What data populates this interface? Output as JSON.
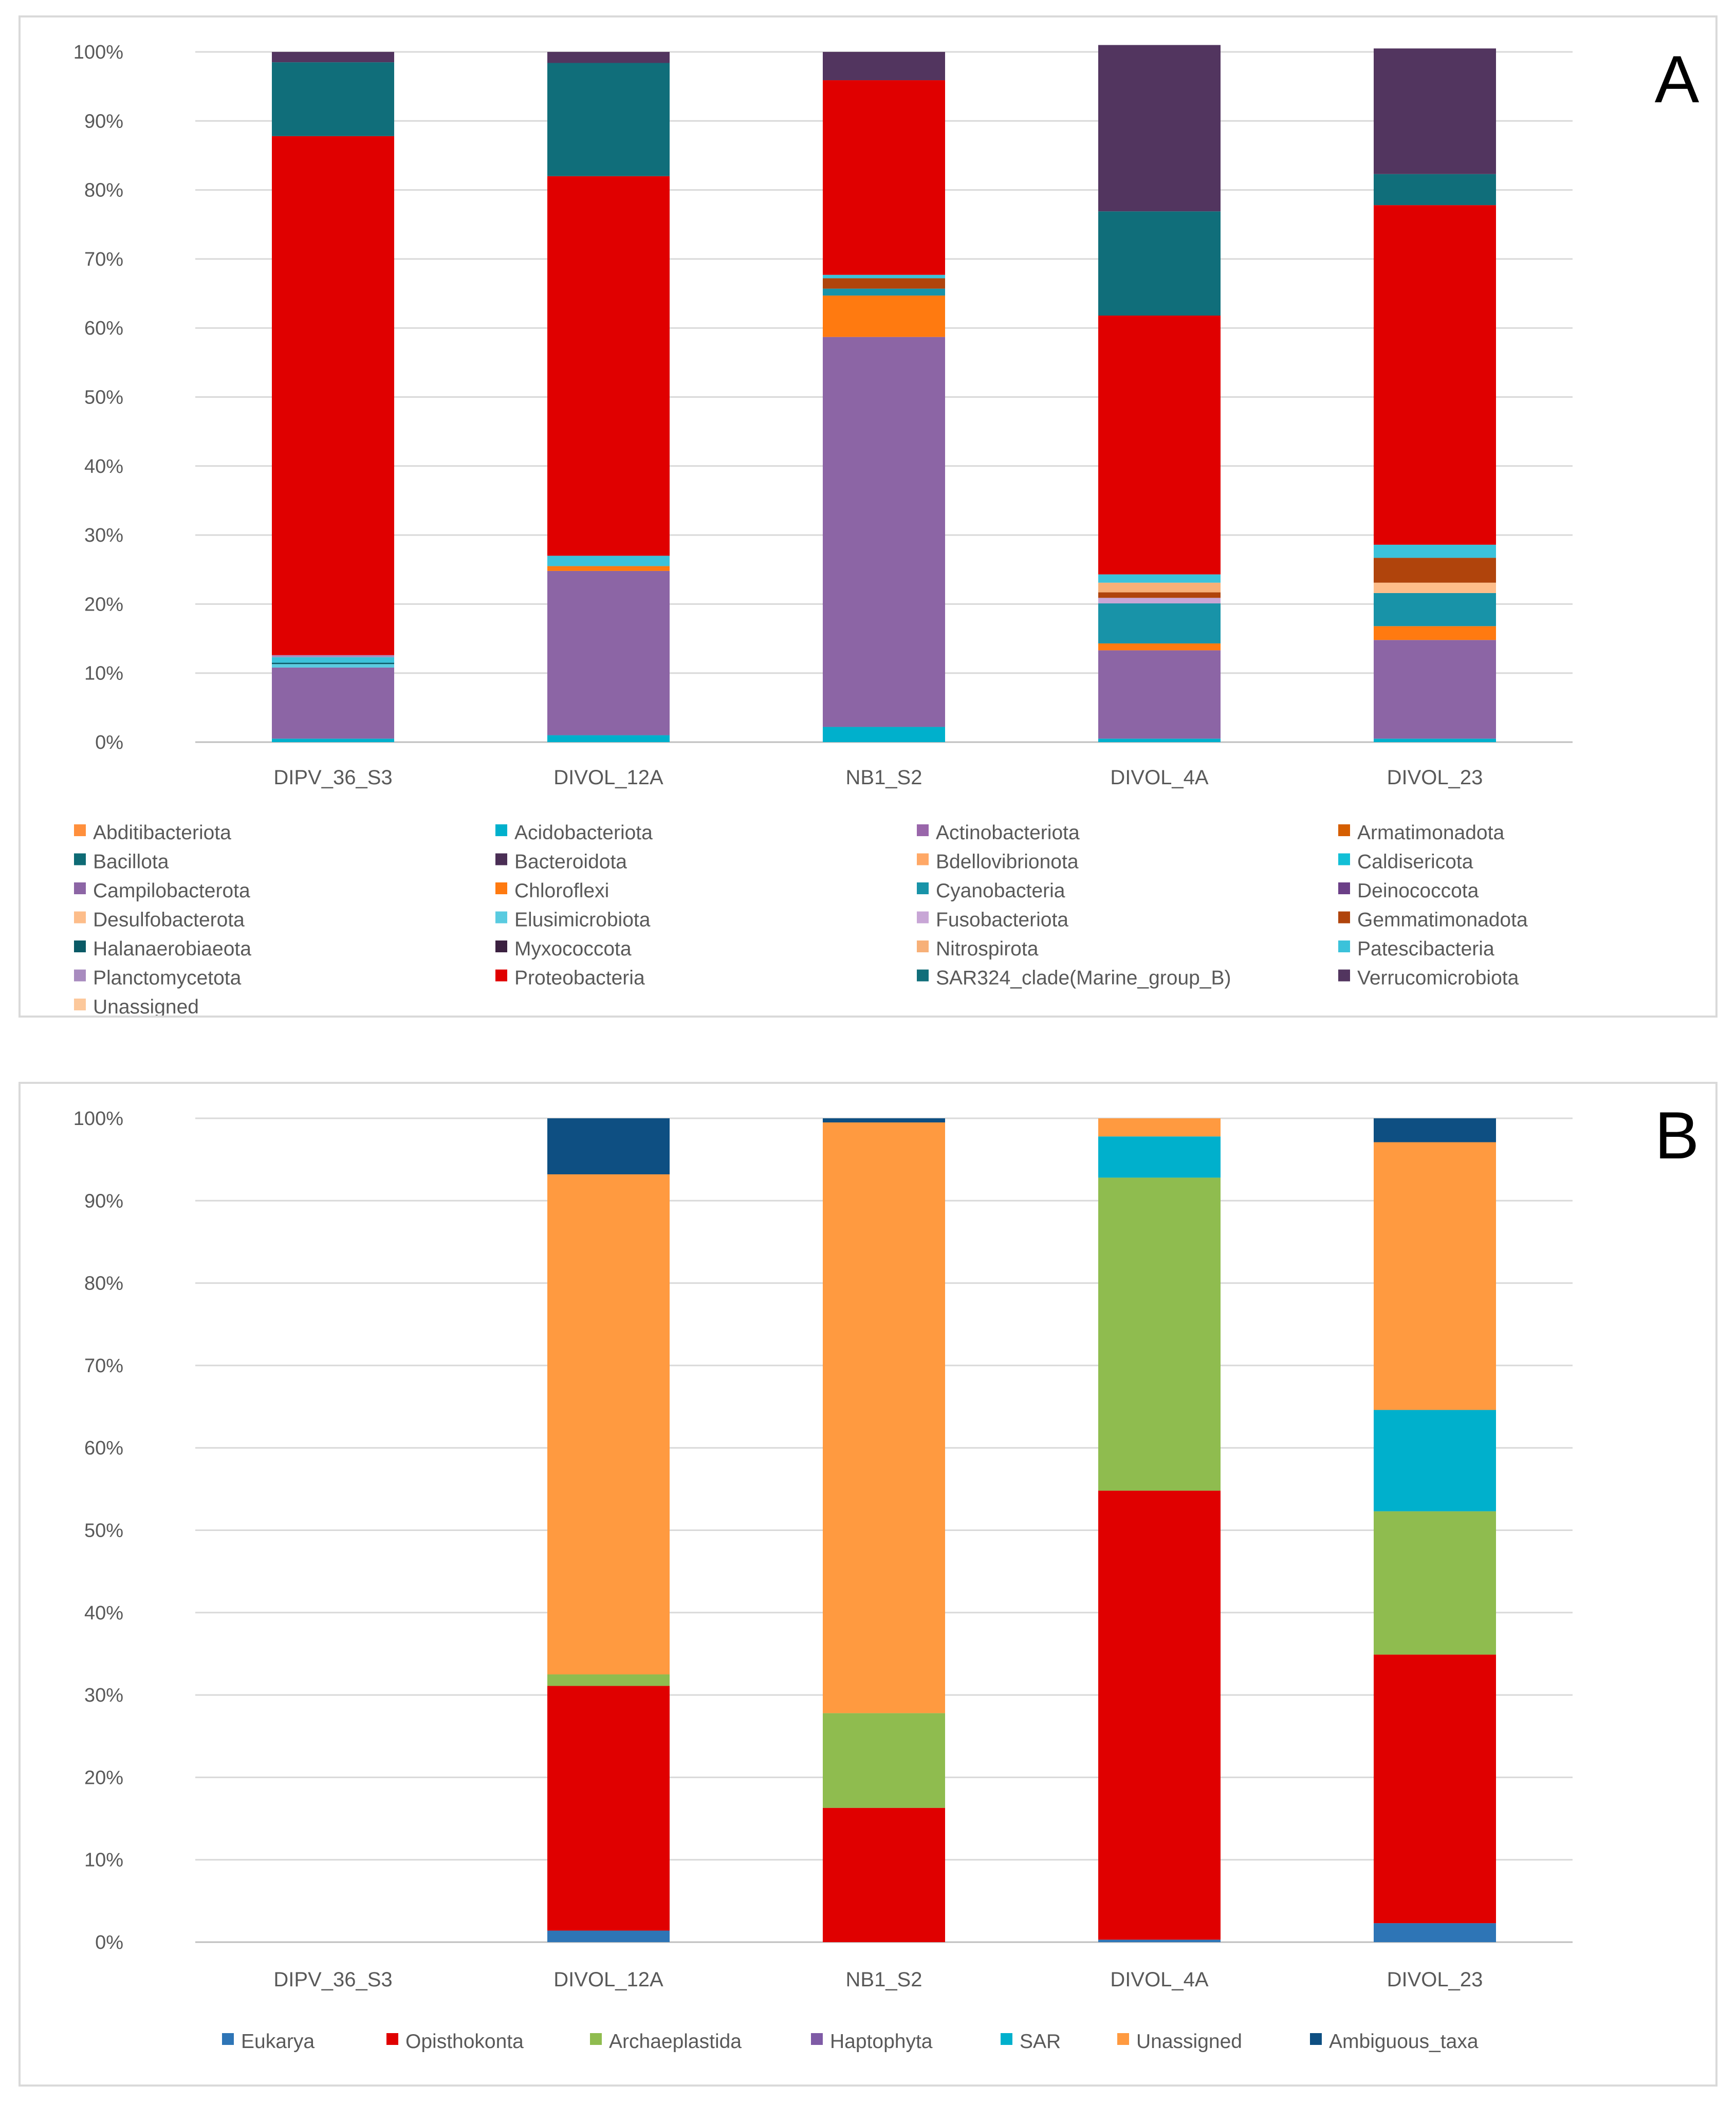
{
  "chart_data": [
    {
      "type": "bar",
      "stacked": true,
      "percent": true,
      "panel_label": "A",
      "categories": [
        "DIPV_36_S3",
        "DIVOL_12A",
        "NB1_S2",
        "DIVOL_4A",
        "DIVOL_23"
      ],
      "ylim": [
        0,
        100
      ],
      "yticks": [
        "0%",
        "10%",
        "20%",
        "30%",
        "40%",
        "50%",
        "60%",
        "70%",
        "80%",
        "90%",
        "100%"
      ],
      "legend_position": "bottom",
      "series": [
        {
          "name": "Abditibacteriota",
          "color": "#FF8F3C",
          "values": [
            0,
            0,
            0,
            0,
            0
          ]
        },
        {
          "name": "Acidobacteriota",
          "color": "#00B0CC",
          "values": [
            0.5,
            1.0,
            2.2,
            0.5,
            0.5
          ]
        },
        {
          "name": "Actinobacteriota",
          "color": "#9966AA",
          "values": [
            0,
            0,
            0,
            0,
            0
          ]
        },
        {
          "name": "Armatimonadota",
          "color": "#D55E00",
          "values": [
            0,
            0,
            0,
            0,
            0
          ]
        },
        {
          "name": "Bacillota",
          "color": "#0E6B75",
          "values": [
            0,
            0,
            0,
            0,
            0
          ]
        },
        {
          "name": "Bacteroidota",
          "color": "#4A2E55",
          "values": [
            0,
            0,
            0,
            0,
            0
          ]
        },
        {
          "name": "Bdellovibrionota",
          "color": "#FFA866",
          "values": [
            0,
            0,
            0,
            0,
            0
          ]
        },
        {
          "name": "Caldisericota",
          "color": "#12BFD6",
          "values": [
            0,
            0,
            0,
            0,
            0
          ]
        },
        {
          "name": "Campilobacterota",
          "color": "#8C65A5",
          "values": [
            10.3,
            23.8,
            56.5,
            12.8,
            14.3
          ]
        },
        {
          "name": "Chloroflexi",
          "color": "#FF7A10",
          "values": [
            0,
            0.7,
            6.0,
            1.0,
            2.0
          ]
        },
        {
          "name": "Cyanobacteria",
          "color": "#1893A8",
          "values": [
            0,
            0,
            1.0,
            5.8,
            4.8
          ]
        },
        {
          "name": "Deinococcota",
          "color": "#6B3F87",
          "values": [
            0,
            0,
            0,
            0,
            0
          ]
        },
        {
          "name": "Desulfobacterota",
          "color": "#FDBD8A",
          "values": [
            0,
            0,
            0,
            0,
            1.5
          ]
        },
        {
          "name": "Elusimicrobiota",
          "color": "#59CBE0",
          "values": [
            0.5,
            0,
            0,
            0,
            0
          ]
        },
        {
          "name": "Fusobacteriota",
          "color": "#C8A6D6",
          "values": [
            0,
            0,
            0,
            0.8,
            0
          ]
        },
        {
          "name": "Gemmatimonadota",
          "color": "#B0440C",
          "values": [
            0,
            0,
            1.5,
            0.8,
            3.6
          ]
        },
        {
          "name": "Halanaerobiaeota",
          "color": "#0A5A66",
          "values": [
            0.2,
            0,
            0,
            0,
            0
          ]
        },
        {
          "name": "Myxococcota",
          "color": "#3B2040",
          "values": [
            0,
            0,
            0,
            0,
            0
          ]
        },
        {
          "name": "Nitrospirota",
          "color": "#F7B078",
          "values": [
            0,
            0,
            0,
            1.4,
            0
          ]
        },
        {
          "name": "Patescibacteria",
          "color": "#3BC2DA",
          "values": [
            0.8,
            1.5,
            0.5,
            1.2,
            1.9
          ]
        },
        {
          "name": "Planctomycetota",
          "color": "#A88BBF",
          "values": [
            0.3,
            0,
            0,
            0,
            0
          ]
        },
        {
          "name": "Proteobacteria",
          "color": "#E00000",
          "values": [
            75.2,
            55.0,
            28.2,
            37.5,
            49.2
          ]
        },
        {
          "name": "SAR324_clade(Marine_group_B)",
          "color": "#106E7A",
          "values": [
            10.7,
            16.4,
            0,
            15.1,
            4.5
          ]
        },
        {
          "name": "Verrucomicrobiota",
          "color": "#52355F",
          "values": [
            1.5,
            1.6,
            4.1,
            24.1,
            18.2
          ]
        },
        {
          "name": "Unassigned",
          "color": "#FCC89B",
          "values": [
            0,
            0,
            0,
            0,
            0
          ]
        }
      ]
    },
    {
      "type": "bar",
      "stacked": true,
      "percent": true,
      "panel_label": "B",
      "categories": [
        "DIPV_36_S3",
        "DIVOL_12A",
        "NB1_S2",
        "DIVOL_4A",
        "DIVOL_23"
      ],
      "ylim": [
        0,
        100
      ],
      "yticks": [
        "0%",
        "10%",
        "20%",
        "30%",
        "40%",
        "50%",
        "60%",
        "70%",
        "80%",
        "90%",
        "100%"
      ],
      "legend_position": "bottom",
      "series": [
        {
          "name": "Eukarya",
          "color": "#2E75B6",
          "values": [
            0,
            1.4,
            0,
            0.3,
            2.3
          ]
        },
        {
          "name": "Opisthokonta",
          "color": "#E00000",
          "values": [
            0,
            29.7,
            16.3,
            54.5,
            32.6
          ]
        },
        {
          "name": "Archaeplastida",
          "color": "#8FBC4F",
          "values": [
            0,
            1.4,
            11.5,
            38.0,
            17.4
          ]
        },
        {
          "name": "Haptophyta",
          "color": "#7F5BA6",
          "values": [
            0,
            0,
            0,
            0,
            0
          ]
        },
        {
          "name": "SAR",
          "color": "#00B0CC",
          "values": [
            0,
            0,
            0,
            5.0,
            12.3
          ]
        },
        {
          "name": "Unassigned",
          "color": "#FF9A40",
          "values": [
            0,
            60.7,
            71.7,
            2.2,
            32.5
          ]
        },
        {
          "name": "Ambiguous_taxa",
          "color": "#0E4F82",
          "values": [
            0,
            6.8,
            0.5,
            0,
            2.9
          ]
        }
      ]
    }
  ]
}
